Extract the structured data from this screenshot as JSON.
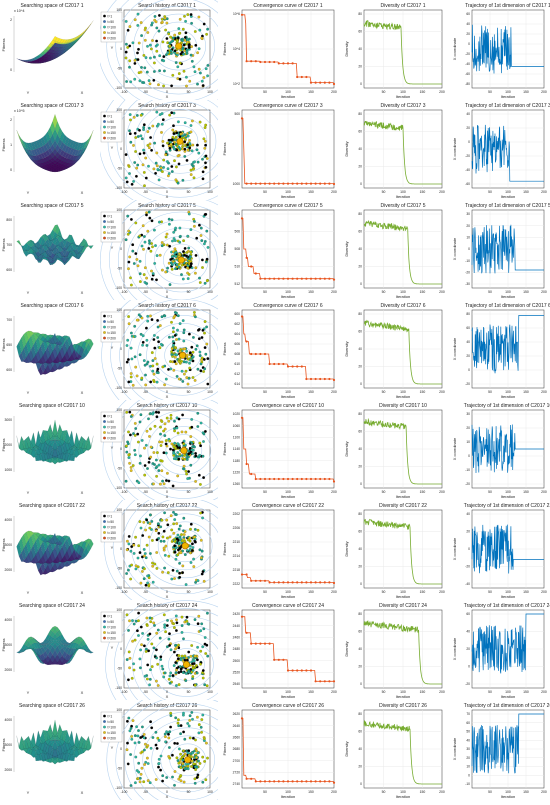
{
  "legend_labels": [
    "t=1",
    "t=50",
    "t=100",
    "t=150",
    "t=200"
  ],
  "common": {
    "x_label": "X",
    "y_label": "Y",
    "fitness_label": "Fitness",
    "iteration_label": "Iteration",
    "diversity_label": "Diversity",
    "xcoord_label": "X coordinate"
  },
  "colors": {
    "convergence": "#e8541e",
    "diversity": "#77ac30",
    "trajectory": "#0072bd",
    "legend": [
      "#000000",
      "#3b6fb6",
      "#2bb5a0",
      "#e0c020",
      "#d94a1a"
    ]
  },
  "rows": [
    {
      "fn": "C2017 1",
      "search_space_title": "Searching space of C2017 1",
      "history_title": "Search history of C2017 1",
      "convergence_title": "Convergence curve of C2017 1",
      "diversity_title": "Diversity of C2017 1",
      "trajectory_title": "Trajectory of 1st dimension of C2017 1",
      "surface_style": "bowl",
      "z_exponent": "x 10^4",
      "z_ticks": [
        "0",
        "2"
      ],
      "conv_yscale": "log",
      "conv_ylim": [
        100,
        1000000
      ],
      "conv_yticks": [
        "10^2",
        "10^4",
        "10^6"
      ],
      "conv_steps": [
        [
          0,
          900000
        ],
        [
          8,
          300000
        ],
        [
          10,
          2000
        ],
        [
          40,
          1800
        ],
        [
          80,
          1500
        ],
        [
          120,
          250
        ],
        [
          150,
          120
        ],
        [
          200,
          100
        ]
      ],
      "div_start": 78,
      "div_drop": 95,
      "traj_ylim": [
        -80,
        80
      ],
      "traj_yticks": [
        "60",
        "40",
        "20",
        "0",
        "-20",
        "-40",
        "-60",
        "-80"
      ],
      "traj_final": -40,
      "traj_conv": 110
    },
    {
      "fn": "C2017 3",
      "search_space_title": "Searching space of C2017 3",
      "history_title": "Search history of C2017 3",
      "convergence_title": "Convergence curve of C2017 3",
      "diversity_title": "Diversity of C2017 3",
      "trajectory_title": "Trajectory of 1st dimension of C2017 3",
      "surface_style": "bowl-flat",
      "z_exponent": "x 10^5",
      "z_ticks": [
        "0",
        "1",
        "2"
      ],
      "conv_yscale": "linear",
      "conv_ylim": [
        300,
        1100
      ],
      "conv_yticks": [
        "1000",
        "500"
      ],
      "conv_steps": [
        [
          0,
          1050
        ],
        [
          3,
          700
        ],
        [
          6,
          305
        ],
        [
          200,
          300
        ]
      ],
      "div_start": 78,
      "div_drop": 100,
      "traj_ylim": [
        -60,
        40
      ],
      "traj_yticks": [
        "40",
        "20",
        "0",
        "-20",
        "-40",
        "-60"
      ],
      "traj_final": -56,
      "traj_conv": 105
    },
    {
      "fn": "C2017 5",
      "search_space_title": "Searching space of C2017 5",
      "history_title": "Search history of C2017 5",
      "convergence_title": "Convergence curve of C2017 5",
      "diversity_title": "Diversity of C2017 5",
      "trajectory_title": "Trajectory of 1st dimension of C2017 5",
      "surface_style": "ripple",
      "z_exponent": "",
      "z_ticks": [
        "600",
        "700",
        "800"
      ],
      "conv_yscale": "linear",
      "conv_ylim": [
        504,
        512
      ],
      "conv_yticks": [
        "512",
        "510",
        "508",
        "506",
        "504"
      ],
      "conv_steps": [
        [
          0,
          511.5
        ],
        [
          4,
          508
        ],
        [
          10,
          507
        ],
        [
          14,
          506
        ],
        [
          25,
          505.2
        ],
        [
          40,
          504.6
        ],
        [
          200,
          504.5
        ]
      ],
      "div_start": 78,
      "div_drop": 112,
      "traj_ylim": [
        -30,
        30
      ],
      "traj_yticks": [
        "30",
        "20",
        "10",
        "0",
        "-10",
        "-20",
        "-30"
      ],
      "traj_final": -18,
      "traj_conv": 120
    },
    {
      "fn": "C2017 6",
      "search_space_title": "Searching space of C2017 6",
      "history_title": "Search history of C2017 6",
      "convergence_title": "Convergence curve of C2017 6",
      "diversity_title": "Diversity of C2017 6",
      "trajectory_title": "Trajectory of 1st dimension of C2017 6",
      "surface_style": "wave",
      "z_exponent": "",
      "z_ticks": [
        "600",
        "650",
        "700"
      ],
      "conv_yscale": "linear",
      "conv_ylim": [
        600,
        614
      ],
      "conv_yticks": [
        "614",
        "612",
        "610",
        "608",
        "606",
        "604",
        "602",
        "600"
      ],
      "conv_steps": [
        [
          0,
          613.5
        ],
        [
          3,
          610
        ],
        [
          8,
          608.5
        ],
        [
          15,
          606
        ],
        [
          60,
          604
        ],
        [
          100,
          603.5
        ],
        [
          140,
          601
        ],
        [
          200,
          600.8
        ]
      ],
      "div_start": 78,
      "div_drop": 115,
      "traj_ylim": [
        -20,
        80
      ],
      "traj_yticks": [
        "80",
        "60",
        "40",
        "20",
        "0",
        "-20"
      ],
      "traj_final": 78,
      "traj_conv": 130
    },
    {
      "fn": "C2017 10",
      "search_space_title": "Searching space of C2017 10",
      "history_title": "Search history of C2017 10",
      "convergence_title": "Convergence curve of C2017 10",
      "diversity_title": "Diversity of C2017 10",
      "trajectory_title": "Trajectory of 1st dimension of C2017 10",
      "surface_style": "spiky",
      "z_exponent": "",
      "z_ticks": [
        "1000",
        "2000",
        "3000"
      ],
      "conv_yscale": "linear",
      "conv_ylim": [
        1000,
        1280
      ],
      "conv_yticks": [
        "1260",
        "1220",
        "1180",
        "1140",
        "1100",
        "1060",
        "1020"
      ],
      "conv_steps": [
        [
          0,
          1265
        ],
        [
          3,
          1140
        ],
        [
          10,
          1080
        ],
        [
          15,
          1040
        ],
        [
          30,
          1020
        ],
        [
          200,
          1010
        ]
      ],
      "div_start": 80,
      "div_drop": 108,
      "traj_ylim": [
        -20,
        30
      ],
      "traj_yticks": [
        "30",
        "20",
        "10",
        "0",
        "-10",
        "-20"
      ],
      "traj_final": 5,
      "traj_conv": 120
    },
    {
      "fn": "C2017 22",
      "search_space_title": "Searching space of C2017 22",
      "history_title": "Search history of C2017 22",
      "convergence_title": "Convergence curve of C2017 22",
      "diversity_title": "Diversity of C2017 22",
      "trajectory_title": "Trajectory of 1st dimension of C2017 22",
      "surface_style": "wave",
      "z_exponent": "",
      "z_ticks": [
        "2000",
        "3000",
        "4000"
      ],
      "conv_yscale": "linear",
      "conv_ylim": [
        2200,
        2222
      ],
      "conv_yticks": [
        "2222",
        "2218",
        "2214",
        "2210",
        "2206",
        "2202"
      ],
      "conv_steps": [
        [
          0,
          2203
        ],
        [
          12,
          2202
        ],
        [
          20,
          2201
        ],
        [
          60,
          2200.5
        ],
        [
          200,
          2200.3
        ]
      ],
      "div_start": 80,
      "div_drop": 118,
      "traj_ylim": [
        -40,
        40
      ],
      "traj_yticks": [
        "40",
        "20",
        "0",
        "-20",
        "-40"
      ],
      "traj_final": -12,
      "traj_conv": 115
    },
    {
      "fn": "C2017 24",
      "search_space_title": "Searching space of C2017 24",
      "history_title": "Search history of C2017 24",
      "convergence_title": "Convergence curve of C2017 24",
      "diversity_title": "Diversity of C2017 24",
      "trajectory_title": "Trajectory of 1st dimension of C2017 24",
      "surface_style": "valley",
      "z_exponent": "",
      "z_ticks": [
        "2000",
        "3000",
        "4000"
      ],
      "conv_yscale": "linear",
      "conv_ylim": [
        2415,
        2545
      ],
      "conv_yticks": [
        "2540",
        "2520",
        "2500",
        "2480",
        "2460",
        "2440",
        "2420"
      ],
      "conv_steps": [
        [
          0,
          2540
        ],
        [
          8,
          2510
        ],
        [
          20,
          2490
        ],
        [
          70,
          2460
        ],
        [
          100,
          2440
        ],
        [
          160,
          2420
        ],
        [
          200,
          2420
        ]
      ],
      "div_start": 78,
      "div_drop": 140,
      "traj_ylim": [
        -20,
        60
      ],
      "traj_yticks": [
        "60",
        "40",
        "20",
        "0",
        "-20"
      ],
      "traj_final": 60,
      "traj_conv": 150
    },
    {
      "fn": "C2017 26",
      "search_space_title": "Searching space of C2017 26",
      "history_title": "Search history of C2017 26",
      "convergence_title": "Convergence curve of C2017 26",
      "diversity_title": "Diversity of C2017 26",
      "trajectory_title": "Trajectory of 1st dimension of C2017 26",
      "surface_style": "spiky",
      "z_exponent": "",
      "z_ticks": [
        "2000",
        "3000",
        "4000"
      ],
      "conv_yscale": "linear",
      "conv_ylim": [
        2600,
        2760
      ],
      "conv_yticks": [
        "2740",
        "2720",
        "2700",
        "2680",
        "2660",
        "2640",
        "2620"
      ],
      "conv_steps": [
        [
          0,
          2750
        ],
        [
          3,
          2620
        ],
        [
          10,
          2612
        ],
        [
          30,
          2606
        ],
        [
          200,
          2603
        ]
      ],
      "div_start": 78,
      "div_drop": 118,
      "traj_ylim": [
        -20,
        70
      ],
      "traj_yticks": [
        "70",
        "60",
        "50",
        "40",
        "30",
        "20",
        "10",
        "0",
        "-10"
      ],
      "traj_final": 70,
      "traj_conv": 130
    }
  ],
  "chart_data": [
    {
      "type": "line",
      "title": "Convergence curve of C2017 1",
      "xlabel": "Iteration",
      "ylabel": "Fitness",
      "xlim": [
        0,
        200
      ],
      "yscale": "log",
      "x": [
        1,
        8,
        10,
        40,
        80,
        120,
        150,
        200
      ],
      "series": [
        {
          "values": [
            900000,
            300000,
            2000,
            1800,
            1500,
            250,
            120,
            100
          ]
        }
      ]
    },
    {
      "type": "line",
      "title": "Convergence curve of C2017 3",
      "xlabel": "Iteration",
      "ylabel": "Fitness",
      "xlim": [
        0,
        200
      ],
      "x": [
        1,
        3,
        6,
        200
      ],
      "series": [
        {
          "values": [
            1050,
            700,
            305,
            300
          ]
        }
      ]
    },
    {
      "type": "line",
      "title": "Convergence curve of C2017 5",
      "xlabel": "Iteration",
      "ylabel": "Fitness",
      "xlim": [
        0,
        200
      ],
      "x": [
        1,
        4,
        10,
        14,
        25,
        40,
        200
      ],
      "series": [
        {
          "values": [
            511.5,
            508,
            507,
            506,
            505.2,
            504.6,
            504.5
          ]
        }
      ]
    },
    {
      "type": "line",
      "title": "Convergence curve of C2017 6",
      "xlabel": "Iteration",
      "ylabel": "Fitness",
      "xlim": [
        0,
        200
      ],
      "x": [
        1,
        3,
        8,
        15,
        60,
        100,
        140,
        200
      ],
      "series": [
        {
          "values": [
            613.5,
            610,
            608.5,
            606,
            604,
            603.5,
            601,
            600.8
          ]
        }
      ]
    },
    {
      "type": "line",
      "title": "Convergence curve of C2017 10",
      "xlabel": "Iteration",
      "ylabel": "Fitness",
      "xlim": [
        0,
        200
      ],
      "x": [
        1,
        3,
        10,
        15,
        30,
        200
      ],
      "series": [
        {
          "values": [
            1265,
            1140,
            1080,
            1040,
            1020,
            1010
          ]
        }
      ]
    },
    {
      "type": "line",
      "title": "Convergence curve of C2017 22",
      "xlabel": "Iteration",
      "ylabel": "Fitness",
      "xlim": [
        0,
        200
      ],
      "x": [
        1,
        12,
        20,
        60,
        200
      ],
      "series": [
        {
          "values": [
            2203,
            2202,
            2201,
            2200.5,
            2200.3
          ]
        }
      ]
    },
    {
      "type": "line",
      "title": "Convergence curve of C2017 24",
      "xlabel": "Iteration",
      "ylabel": "Fitness",
      "xlim": [
        0,
        200
      ],
      "x": [
        1,
        8,
        20,
        70,
        100,
        160,
        200
      ],
      "series": [
        {
          "values": [
            2540,
            2510,
            2490,
            2460,
            2440,
            2420,
            2420
          ]
        }
      ]
    },
    {
      "type": "line",
      "title": "Convergence curve of C2017 26",
      "xlabel": "Iteration",
      "ylabel": "Fitness",
      "xlim": [
        0,
        200
      ],
      "x": [
        1,
        3,
        10,
        30,
        200
      ],
      "series": [
        {
          "values": [
            2750,
            2620,
            2612,
            2606,
            2603
          ]
        }
      ]
    }
  ]
}
